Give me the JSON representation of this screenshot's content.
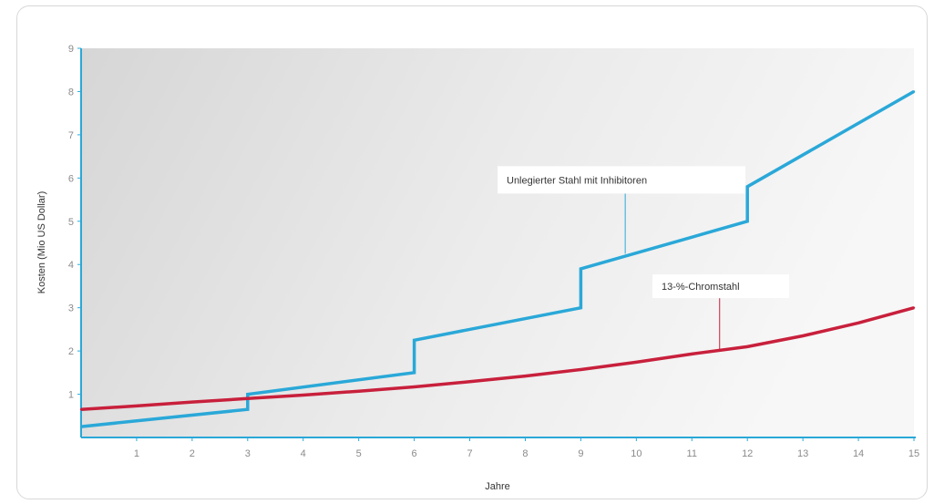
{
  "chart_data": {
    "type": "line",
    "xlabel": "Jahre",
    "ylabel": "Kosten (Mio US Dollar)",
    "xlim": [
      0,
      15
    ],
    "ylim": [
      0,
      9
    ],
    "xticks": [
      1,
      2,
      3,
      4,
      5,
      6,
      7,
      8,
      9,
      10,
      11,
      12,
      13,
      14,
      15
    ],
    "yticks": [
      1,
      2,
      3,
      4,
      5,
      6,
      7,
      8,
      9
    ],
    "grid": false,
    "series": [
      {
        "name": "Unlegierter Stahl mit Inhibitoren",
        "color": "#2aa8d8",
        "x": [
          0,
          3,
          3,
          6,
          6,
          9,
          9,
          12,
          12,
          15
        ],
        "y": [
          0.25,
          0.65,
          1.0,
          1.5,
          2.25,
          3.0,
          3.9,
          5.0,
          5.8,
          8.0
        ]
      },
      {
        "name": "13-%-Chromstahl",
        "color": "#c8203c",
        "x": [
          0,
          1,
          2,
          3,
          4,
          5,
          6,
          7,
          8,
          9,
          10,
          11,
          12,
          13,
          14,
          15
        ],
        "y": [
          0.65,
          0.73,
          0.82,
          0.9,
          0.98,
          1.07,
          1.17,
          1.29,
          1.42,
          1.57,
          1.74,
          1.93,
          2.1,
          2.35,
          2.65,
          3.0
        ]
      }
    ],
    "annotations": [
      {
        "text": "Unlegierter Stahl mit Inhibitoren",
        "series": 0,
        "x": 9.8,
        "y": 4.25
      },
      {
        "text": "13-%-Chromstahl",
        "series": 1,
        "x": 11.5,
        "y": 2.0
      }
    ]
  }
}
